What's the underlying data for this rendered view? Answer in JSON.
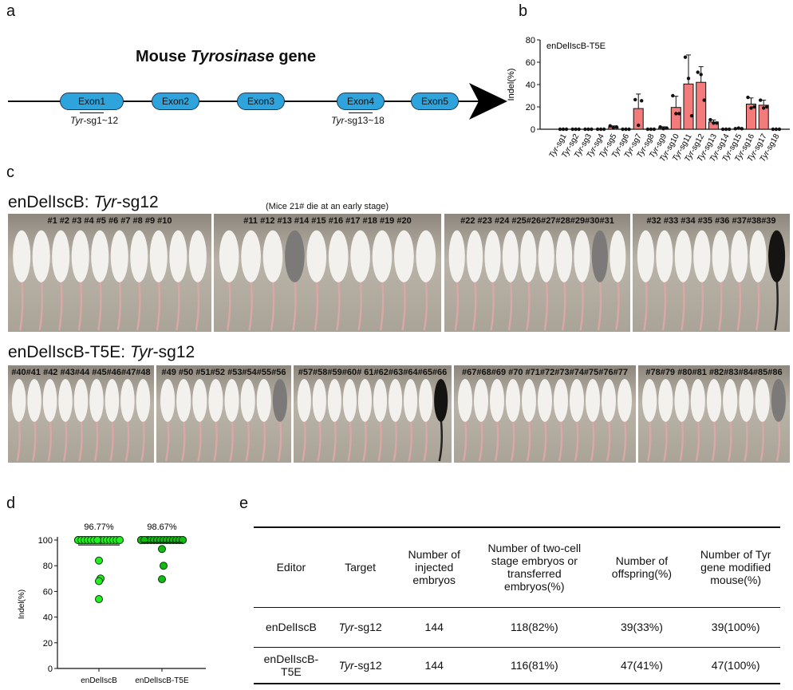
{
  "panels": {
    "a": "a",
    "b": "b",
    "c": "c",
    "d": "d",
    "e": "e"
  },
  "panel_a": {
    "title_prefix": "Mouse ",
    "title_italic": "Tyrosinase",
    "title_suffix": " gene",
    "exons": [
      "Exon1",
      "Exon2",
      "Exon3",
      "Exon4",
      "Exon5"
    ],
    "sg_label1": {
      "italic": "Tyr",
      "rest": "-sg1~12"
    },
    "sg_label2": {
      "italic": "Tyr",
      "rest": "-sg13~18"
    }
  },
  "panel_c": {
    "row1_title": {
      "prefix": "enDelIscB: ",
      "italic": "Tyr",
      "rest": "-sg12"
    },
    "note": "(Mice 21# die at an early stage)",
    "row1_groups": [
      "#1  #2  #3  #4  #5  #6   #7  #8  #9  #10",
      "#11 #12 #13 #14 #15 #16 #17 #18 #19 #20",
      "#22 #23 #24 #25#26#27#28#29#30#31",
      "#32 #33 #34 #35 #36 #37#38#39"
    ],
    "row2_title": {
      "prefix": "enDelIscB-T5E: ",
      "italic": "Tyr",
      "rest": "-sg12"
    },
    "row2_groups": [
      "#40#41 #42 #43#44 #45#46#47#48",
      "#49 #50 #51#52 #53#54#55#56",
      "#57#58#59#60# 61#62#63#64#65#66",
      "#67#68#69 #70 #71#72#73#74#75#76#77",
      "#78#79 #80#81 #82#83#84#85#86"
    ]
  },
  "panel_e": {
    "headers": [
      "Editor",
      "Target",
      "Number of injected embryos",
      "Number of two-cell stage embryos or transferred embryos(%)",
      "Number of offspring(%)",
      "Number of Tyr gene modified mouse(%)"
    ],
    "rows": [
      {
        "editor": "enDelIscB",
        "target_italic": "Tyr",
        "target_rest": "-sg12",
        "injected": "144",
        "transferred": "118(82%)",
        "offspring": "39(33%)",
        "modified": "39(100%)"
      },
      {
        "editor": "enDelIscB-T5E",
        "target_italic": "Tyr",
        "target_rest": "-sg12",
        "injected": "144",
        "transferred": "116(81%)",
        "offspring": "47(41%)",
        "modified": "47(100%)"
      }
    ]
  },
  "chart_data": [
    {
      "type": "bar",
      "title": "enDelIscB-T5E",
      "ylabel": "Indel(%)",
      "xlabel": "",
      "ylim": [
        0,
        80
      ],
      "yticks": [
        0,
        20,
        40,
        60,
        80
      ],
      "categories": [
        "Tyr-sg1",
        "Tyr-sg2",
        "Tyr-sg3",
        "Tyr-sg4",
        "Tyr-sg5",
        "Tyr-sg6",
        "Tyr-sg7",
        "Tyr-sg8",
        "Tyr-sg9",
        "Tyr-sg10",
        "Tyr-sg11",
        "Tyr-sg12",
        "Tyr-sg13",
        "Tyr-sg14",
        "Tyr-sg15",
        "Tyr-sg16",
        "Tyr-sg17",
        "Tyr-sg18"
      ],
      "values": [
        0,
        0,
        0,
        0,
        2,
        0,
        18.5,
        0,
        1.2,
        19.5,
        40.5,
        42,
        6.5,
        0,
        0.5,
        22.5,
        21.5,
        0
      ],
      "errors": [
        0,
        0,
        0,
        0,
        1,
        0,
        13,
        0,
        1,
        10,
        26,
        14,
        1.8,
        0,
        0.3,
        5.5,
        4.5,
        0
      ],
      "points": [
        [
          0,
          0,
          0
        ],
        [
          0,
          0,
          0
        ],
        [
          0,
          0,
          0
        ],
        [
          0,
          0,
          0
        ],
        [
          3,
          1.5,
          2
        ],
        [
          0,
          0,
          0
        ],
        [
          26.5,
          3.5,
          25.5
        ],
        [
          0,
          0,
          0
        ],
        [
          2,
          0.5,
          1
        ],
        [
          30,
          14,
          14
        ],
        [
          64.5,
          45.5,
          12
        ],
        [
          51,
          49,
          26
        ],
        [
          8.5,
          5.5,
          5.5
        ],
        [
          0,
          0,
          0
        ],
        [
          0.5,
          1,
          0.5
        ],
        [
          28.5,
          19,
          20
        ],
        [
          26,
          19,
          20
        ],
        [
          0,
          0,
          0
        ]
      ],
      "bar_color": "#f47b7b"
    },
    {
      "type": "scatter",
      "ylabel": "Indel(%)",
      "ylim": [
        0,
        100
      ],
      "yticks": [
        0,
        20,
        40,
        60,
        80,
        100
      ],
      "categories": [
        "enDelIscB",
        "enDelIscB-T5E"
      ],
      "series": [
        {
          "name": "enDelIscB",
          "mean_label": "96.77%",
          "values": [
            100,
            100,
            100,
            100,
            100,
            100,
            100,
            100,
            100,
            100,
            100,
            100,
            100,
            100,
            100,
            100,
            100,
            100,
            100,
            100,
            100,
            100,
            100,
            100,
            100,
            100,
            100,
            100,
            100,
            100,
            100,
            100,
            100,
            100,
            100,
            84,
            70,
            68,
            54
          ],
          "color": "#22ee22"
        },
        {
          "name": "enDelIscB-T5E",
          "mean_label": "98.67%",
          "values": [
            100,
            100,
            100,
            100,
            100,
            100,
            100,
            100,
            100,
            100,
            100,
            100,
            100,
            100,
            100,
            100,
            100,
            100,
            100,
            100,
            100,
            100,
            100,
            100,
            100,
            100,
            100,
            100,
            100,
            100,
            100,
            100,
            100,
            100,
            100,
            100,
            100,
            100,
            100,
            100,
            100,
            100,
            100,
            100,
            93,
            80,
            69.5
          ],
          "color": "#11bb11"
        }
      ]
    }
  ]
}
